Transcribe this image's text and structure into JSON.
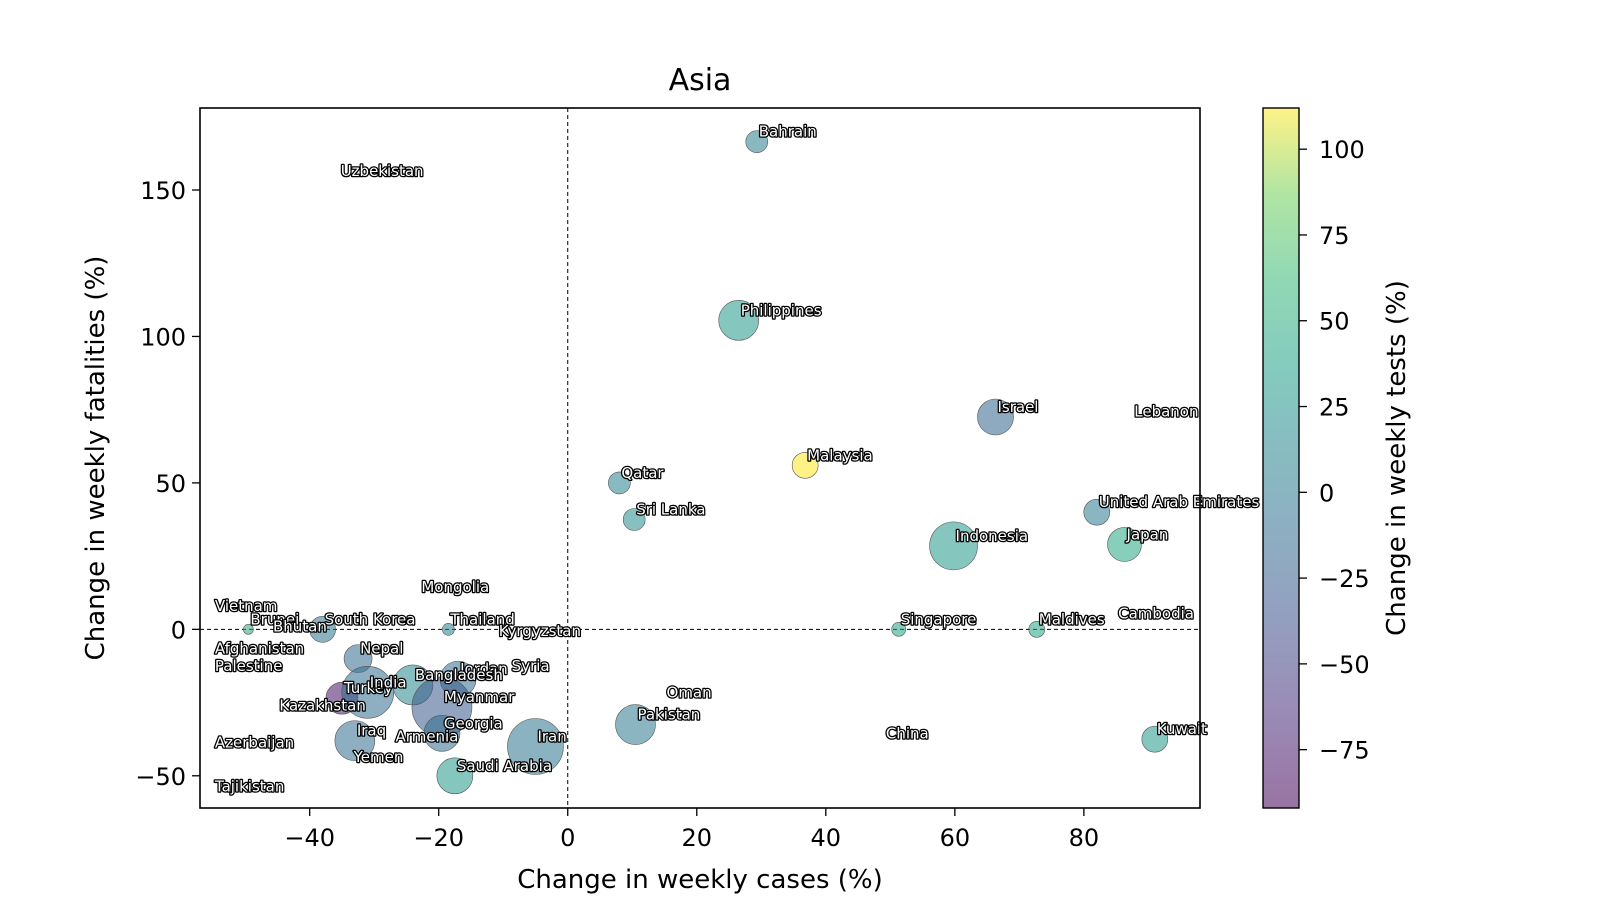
{
  "chart_data": {
    "type": "scatter",
    "title": "Asia",
    "xlabel": "Change in weekly cases (%)",
    "ylabel": "Change in weekly fatalities (%)",
    "xlim": [
      -57,
      98
    ],
    "ylim": [
      -61,
      178
    ],
    "xticks": [
      -40,
      -20,
      0,
      20,
      40,
      60,
      80
    ],
    "yticks": [
      -50,
      0,
      50,
      100,
      150
    ],
    "reference_lines": {
      "x": 0,
      "y": 0,
      "style": "dashed"
    },
    "colorbar": {
      "label": "Change in weekly tests (%)",
      "range": [
        -92,
        112
      ],
      "ticks": [
        -75,
        -50,
        -25,
        0,
        25,
        50,
        75,
        100
      ],
      "colormap": "viridis",
      "alpha": 0.55
    },
    "points": [
      {
        "name": "Bahrain",
        "x": 29.3,
        "y": 166.5,
        "tests": 5,
        "size": 11
      },
      {
        "name": "Uzbekistan",
        "x": -35.5,
        "y": 153,
        "tests": null,
        "size": 0
      },
      {
        "name": "Philippines",
        "x": 26.5,
        "y": 105.5,
        "tests": 30,
        "size": 20
      },
      {
        "name": "Israel",
        "x": 66.3,
        "y": 72.5,
        "tests": -18,
        "size": 18
      },
      {
        "name": "Lebanon",
        "x": 87.5,
        "y": 71,
        "tests": null,
        "size": 0
      },
      {
        "name": "Malaysia",
        "x": 36.8,
        "y": 56,
        "tests": 112,
        "size": 13
      },
      {
        "name": "Qatar",
        "x": 8,
        "y": 50,
        "tests": 10,
        "size": 11
      },
      {
        "name": "Sri Lanka",
        "x": 10.3,
        "y": 37.5,
        "tests": 20,
        "size": 11
      },
      {
        "name": "United Arab Emirates",
        "x": 82,
        "y": 40,
        "tests": 0,
        "size": 13
      },
      {
        "name": "Japan",
        "x": 86.3,
        "y": 29,
        "tests": 45,
        "size": 17
      },
      {
        "name": "Indonesia",
        "x": 59.8,
        "y": 28.5,
        "tests": 30,
        "size": 24
      },
      {
        "name": "Mongolia",
        "x": -23,
        "y": 11,
        "tests": null,
        "size": 0
      },
      {
        "name": "Vietnam",
        "x": -55,
        "y": 4.5,
        "tests": null,
        "size": 0
      },
      {
        "name": "Brunei",
        "x": -49.5,
        "y": 0,
        "tests": 50,
        "size": 5
      },
      {
        "name": "South Korea",
        "x": -38,
        "y": 0,
        "tests": -5,
        "size": 13
      },
      {
        "name": "Thailand",
        "x": -18.5,
        "y": 0,
        "tests": 10,
        "size": 6
      },
      {
        "name": "Singapore",
        "x": 51.3,
        "y": 0,
        "tests": 40,
        "size": 7
      },
      {
        "name": "Maldives",
        "x": 72.7,
        "y": 0,
        "tests": 40,
        "size": 8
      },
      {
        "name": "Cambodia",
        "x": 85,
        "y": 2,
        "tests": null,
        "size": 0
      },
      {
        "name": "Kyrgyzstan",
        "x": -11,
        "y": -4,
        "tests": null,
        "size": 0
      },
      {
        "name": "Afghanistan",
        "x": -55,
        "y": -10,
        "tests": null,
        "size": 0
      },
      {
        "name": "Bhutan",
        "x": -46,
        "y": -2.5,
        "tests": null,
        "size": 0
      },
      {
        "name": "Nepal",
        "x": -32.5,
        "y": -10,
        "tests": -15,
        "size": 14
      },
      {
        "name": "Jordan",
        "x": -17,
        "y": -17,
        "tests": -10,
        "size": 18
      },
      {
        "name": "Palestine",
        "x": -55,
        "y": -16,
        "tests": null,
        "size": 0
      },
      {
        "name": "Bangladesh",
        "x": -24,
        "y": -19,
        "tests": 15,
        "size": 20
      },
      {
        "name": "Syria",
        "x": -9,
        "y": -16,
        "tests": null,
        "size": 0
      },
      {
        "name": "Myanmar",
        "x": -19.5,
        "y": -26.5,
        "tests": -30,
        "size": 30
      },
      {
        "name": "Turkey",
        "x": -35,
        "y": -23.5,
        "tests": -80,
        "size": 16
      },
      {
        "name": "India",
        "x": -31,
        "y": -21.5,
        "tests": -10,
        "size": 26
      },
      {
        "name": "Kazakhstan",
        "x": -45,
        "y": -29.5,
        "tests": null,
        "size": 0
      },
      {
        "name": "Oman",
        "x": 15,
        "y": -25,
        "tests": null,
        "size": 0
      },
      {
        "name": "Iraq",
        "x": -33,
        "y": -38,
        "tests": -10,
        "size": 20
      },
      {
        "name": "Georgia",
        "x": -19.5,
        "y": -35.5,
        "tests": -10,
        "size": 18
      },
      {
        "name": "Iran",
        "x": -5,
        "y": -40,
        "tests": -5,
        "size": 28
      },
      {
        "name": "Pakistan",
        "x": 10.5,
        "y": -32.5,
        "tests": 0,
        "size": 20
      },
      {
        "name": "Armenia",
        "x": -27,
        "y": -40,
        "tests": null,
        "size": 0
      },
      {
        "name": "China",
        "x": 49,
        "y": -39,
        "tests": null,
        "size": 0
      },
      {
        "name": "Kuwait",
        "x": 91,
        "y": -37.5,
        "tests": 30,
        "size": 13
      },
      {
        "name": "Azerbaijan",
        "x": -55,
        "y": -42,
        "tests": null,
        "size": 0
      },
      {
        "name": "Yemen",
        "x": -33.5,
        "y": -47,
        "tests": null,
        "size": 0
      },
      {
        "name": "Saudi Arabia",
        "x": -17.5,
        "y": -50,
        "tests": 30,
        "size": 18
      },
      {
        "name": "Tajikistan",
        "x": -55,
        "y": -57,
        "tests": null,
        "size": 0
      }
    ]
  }
}
